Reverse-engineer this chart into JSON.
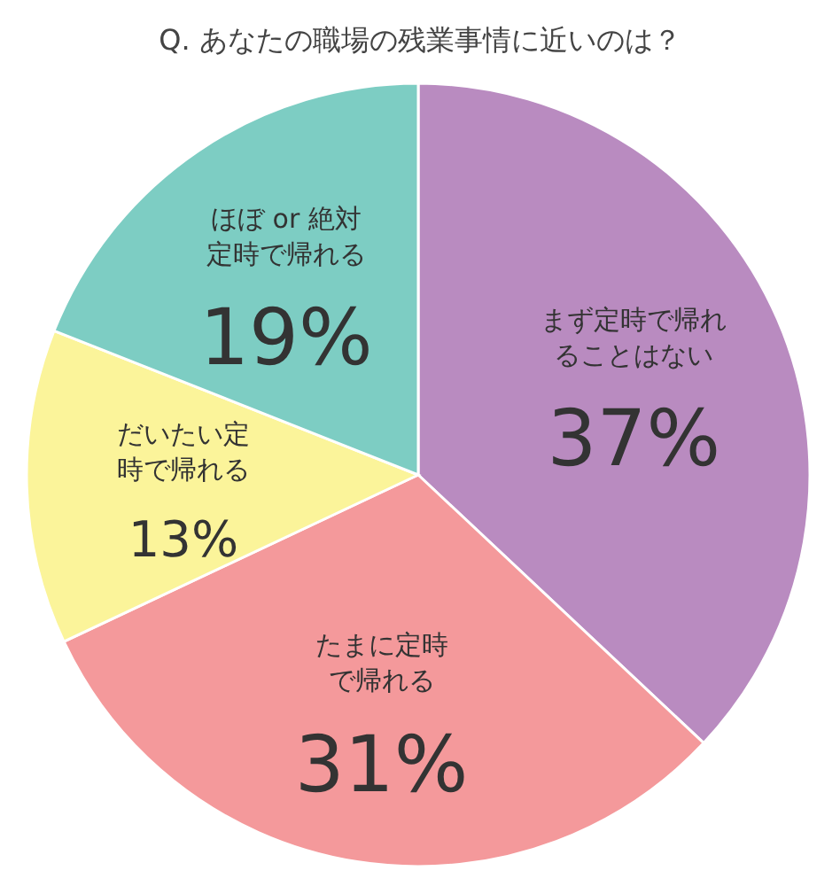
{
  "chart_data": {
    "type": "pie",
    "title": "Q. あなたの職場の残業事情に近いのは？",
    "categories": [
      "まず定時で帰れることはない",
      "たまに定時で帰れる",
      "だいたい定時で帰れる",
      "ほぼ or 絶対定時で帰れる"
    ],
    "values": [
      37,
      31,
      13,
      19
    ],
    "colors": [
      "#b98bc0",
      "#f4999b",
      "#fbf49a",
      "#7dcdc3"
    ],
    "value_labels": [
      "37%",
      "31%",
      "13%",
      "19%"
    ]
  }
}
